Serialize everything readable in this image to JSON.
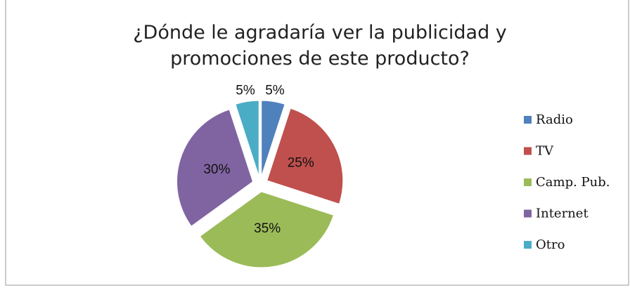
{
  "chart_data": {
    "type": "pie",
    "title": "¿Dónde le agradaría ver la publicidad y promociones de este producto?",
    "categories": [
      "Radio",
      "TV",
      "Camp. Pub.",
      "Internet",
      "Otro"
    ],
    "values": [
      5,
      25,
      35,
      30,
      5
    ],
    "value_labels": [
      "5%",
      "25%",
      "35%",
      "30%",
      "5%"
    ],
    "colors": [
      "#4f81bd",
      "#c0504d",
      "#9bbb59",
      "#8064a2",
      "#4bacc6"
    ],
    "legend": "right"
  }
}
